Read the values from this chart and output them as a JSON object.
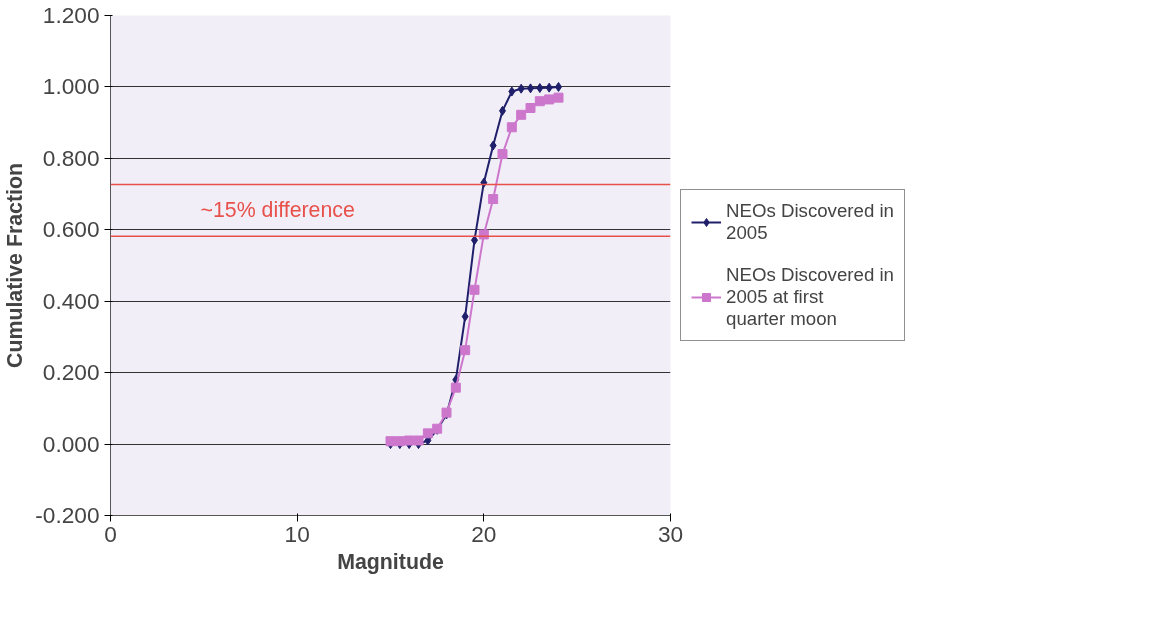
{
  "chart_data": {
    "type": "line",
    "xlabel": "Magnitude",
    "ylabel": "Cumulative Fraction",
    "x": [
      15,
      15.5,
      16,
      16.5,
      17,
      17.5,
      18,
      18.5,
      19,
      19.5,
      20,
      20.5,
      21,
      21.5,
      22,
      22.5,
      23,
      23.5,
      24
    ],
    "series": [
      {
        "name": "NEOs Discovered in 2005",
        "color": "#1f1f6b",
        "marker": "diamond",
        "values": [
          0,
          0,
          0,
          0,
          0.01,
          0.04,
          0.083,
          0.18,
          0.357,
          0.571,
          0.732,
          0.836,
          0.933,
          0.987,
          0.995,
          0.996,
          0.997,
          0.998,
          1.0
        ]
      },
      {
        "name": "NEOs Discovered in 2005 at first quarter moon",
        "color": "#cc77cc",
        "marker": "square",
        "values": [
          0.008,
          0.008,
          0.01,
          0.01,
          0.03,
          0.043,
          0.088,
          0.158,
          0.263,
          0.432,
          0.587,
          0.686,
          0.812,
          0.887,
          0.922,
          0.941,
          0.96,
          0.965,
          0.97
        ]
      }
    ],
    "xlim": [
      0,
      30
    ],
    "xticks": [
      0,
      10,
      20,
      30
    ],
    "ylim": [
      -0.2,
      1.2
    ],
    "yticks": [
      {
        "value": -0.2,
        "label": "-0.200"
      },
      {
        "value": 0,
        "label": "0.000"
      },
      {
        "value": 0.2,
        "label": "0.200"
      },
      {
        "value": 0.4,
        "label": "0.400"
      },
      {
        "value": 0.6,
        "label": "0.600"
      },
      {
        "value": 0.8,
        "label": "0.800"
      },
      {
        "value": 1.0,
        "label": "1.000"
      },
      {
        "value": 1.2,
        "label": "1.200"
      }
    ],
    "ref_lines": [
      {
        "axis": "y",
        "value": 0.727,
        "color": "#e8504a"
      },
      {
        "axis": "y",
        "value": 0.582,
        "color": "#e8504a"
      }
    ],
    "annotations": [
      "~15% difference"
    ],
    "grid": "y",
    "legend": "right"
  }
}
